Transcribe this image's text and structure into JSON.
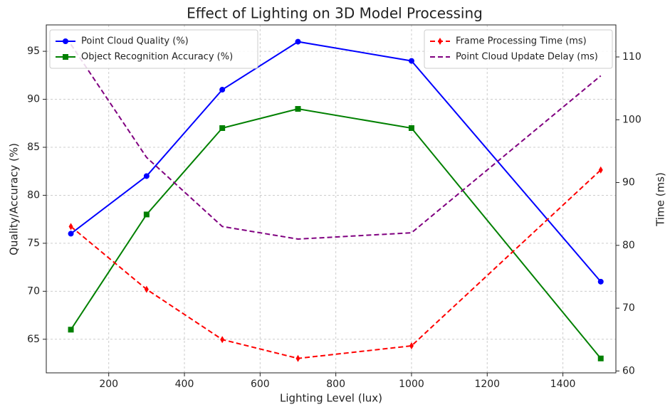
{
  "chart_data": {
    "type": "line",
    "title": "Effect of Lighting on 3D Model Processing",
    "xlabel": "Lighting Level (lux)",
    "ylabel": "Quality/Accuracy (%)",
    "y2label": "Time (ms)",
    "x": [
      100,
      300,
      500,
      700,
      1000,
      1500
    ],
    "series": [
      {
        "name": "Point Cloud Quality (%)",
        "color": "#0000ff",
        "marker": "circle",
        "linestyle": "solid",
        "values": [
          76,
          82,
          91,
          96,
          94,
          71
        ]
      },
      {
        "name": "Object Recognition Accuracy (%)",
        "color": "#008000",
        "marker": "square",
        "linestyle": "solid",
        "values": [
          66,
          78,
          87,
          89,
          87,
          63
        ]
      },
      {
        "name": "Frame Processing Time (ms)",
        "color": "#ff0000",
        "marker": "diamond",
        "linestyle": "dashed",
        "axis": "y2",
        "values": [
          83,
          73,
          65,
          62,
          64,
          92
        ]
      },
      {
        "name": "Point Cloud Update Delay (ms)",
        "color": "#800080",
        "marker": "none",
        "linestyle": "dashed",
        "axis": "y2",
        "values": [
          112,
          94,
          83,
          81,
          82,
          107
        ]
      }
    ],
    "xlim": [
      35,
      1540
    ],
    "xticks": [
      200,
      400,
      600,
      800,
      1000,
      1200,
      1400
    ],
    "ylim": [
      61.5,
      97.75
    ],
    "yticks": [
      65,
      70,
      75,
      80,
      85,
      90,
      95
    ],
    "y2lim": [
      59.7,
      115.1
    ],
    "y2ticks": [
      60,
      70,
      80,
      90,
      100,
      110
    ],
    "grid": true,
    "legend": "upper left",
    "legend2": "upper right"
  }
}
